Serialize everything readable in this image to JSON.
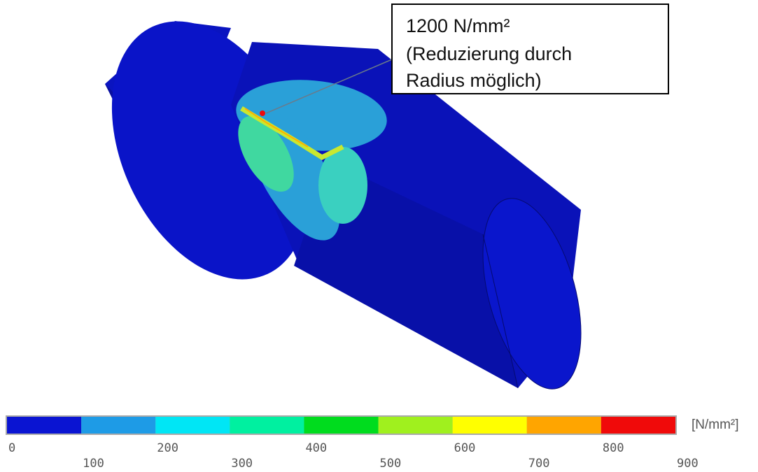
{
  "callout": {
    "lines": [
      "1200 N/mm²",
      "(Reduzierung durch",
      "Radius möglich)"
    ]
  },
  "legend": {
    "unit": "[N/mm²]",
    "ticks": [
      0,
      100,
      200,
      300,
      400,
      500,
      600,
      700,
      800,
      900
    ],
    "colors": [
      "#0a14d2",
      "#1e9be6",
      "#00e6f5",
      "#00f0a0",
      "#00dc1e",
      "#a0f01e",
      "#ffff00",
      "#ffa500",
      "#f00a0a"
    ]
  }
}
